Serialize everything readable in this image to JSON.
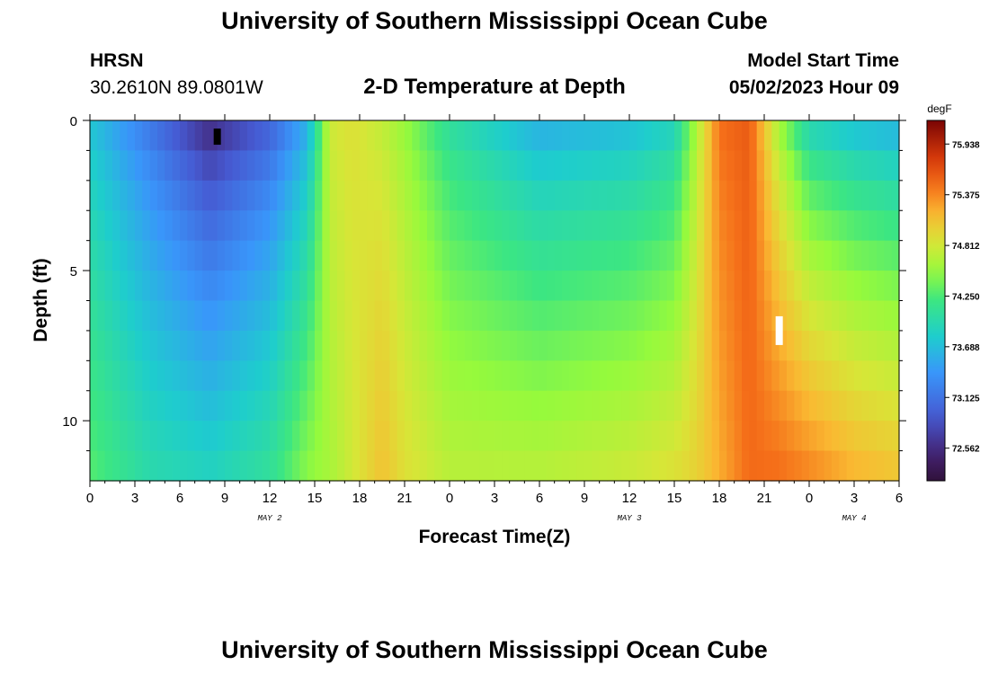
{
  "header": {
    "title": "University of Southern Mississippi Ocean Cube",
    "station": "HRSN",
    "coords": "30.2610N  89.0801W",
    "chart_title": "2-D Temperature at Depth",
    "start_label": "Model Start Time",
    "start_value": "05/02/2023 Hour 09"
  },
  "footer": {
    "title": "University of Southern Mississippi Ocean Cube"
  },
  "chart_data": {
    "type": "heatmap",
    "xlabel": "Forecast Time(Z)",
    "ylabel": "Depth (ft)",
    "x_hours": [
      0,
      54
    ],
    "x_ticks": [
      {
        "h": 0,
        "label": "0"
      },
      {
        "h": 3,
        "label": "3"
      },
      {
        "h": 6,
        "label": "6"
      },
      {
        "h": 9,
        "label": "9"
      },
      {
        "h": 12,
        "label": "12"
      },
      {
        "h": 15,
        "label": "15"
      },
      {
        "h": 18,
        "label": "18"
      },
      {
        "h": 21,
        "label": "21"
      },
      {
        "h": 24,
        "label": "0"
      },
      {
        "h": 27,
        "label": "3"
      },
      {
        "h": 30,
        "label": "6"
      },
      {
        "h": 33,
        "label": "9"
      },
      {
        "h": 36,
        "label": "12"
      },
      {
        "h": 39,
        "label": "15"
      },
      {
        "h": 42,
        "label": "18"
      },
      {
        "h": 45,
        "label": "21"
      },
      {
        "h": 48,
        "label": "0"
      },
      {
        "h": 51,
        "label": "3"
      },
      {
        "h": 54,
        "label": "6"
      }
    ],
    "day_labels": [
      {
        "h": 12,
        "label": "MAY 2"
      },
      {
        "h": 36,
        "label": "MAY 3"
      },
      {
        "h": 51,
        "label": "MAY 4"
      }
    ],
    "ylim": [
      0,
      12
    ],
    "y_ticks": [
      {
        "v": 0,
        "label": "0"
      },
      {
        "v": 5,
        "label": "5"
      },
      {
        "v": 10,
        "label": "10"
      }
    ],
    "colorbar": {
      "unit": "degF",
      "min": 72.2,
      "max": 76.2,
      "ticks": [
        "75.938",
        "75.375",
        "74.812",
        "74.250",
        "73.688",
        "73.125",
        "72.562"
      ]
    },
    "depth_levels": [
      0,
      1,
      2,
      3,
      4,
      5,
      6,
      7,
      8,
      9,
      10,
      11,
      12
    ],
    "field_profiles": [
      {
        "h": 0,
        "surf": 73.7,
        "bot": 74.3
      },
      {
        "h": 4,
        "surf": 73.1,
        "bot": 74.0
      },
      {
        "h": 8,
        "surf": 72.45,
        "bot": 73.9
      },
      {
        "h": 12,
        "surf": 72.9,
        "bot": 74.1
      },
      {
        "h": 14.5,
        "surf": 73.5,
        "bot": 74.5
      },
      {
        "h": 16,
        "surf": 74.8,
        "bot": 74.6
      },
      {
        "h": 17.5,
        "surf": 74.9,
        "bot": 74.8
      },
      {
        "h": 19.5,
        "surf": 74.7,
        "bot": 75.1
      },
      {
        "h": 21,
        "surf": 74.5,
        "bot": 74.9
      },
      {
        "h": 24,
        "surf": 74.0,
        "bot": 74.7
      },
      {
        "h": 30,
        "surf": 73.5,
        "bot": 74.7
      },
      {
        "h": 36,
        "surf": 73.6,
        "bot": 74.8
      },
      {
        "h": 39,
        "surf": 73.8,
        "bot": 74.9
      },
      {
        "h": 40.5,
        "surf": 74.6,
        "bot": 75.0
      },
      {
        "h": 42,
        "surf": 75.5,
        "bot": 75.2
      },
      {
        "h": 44,
        "surf": 75.6,
        "bot": 75.5
      },
      {
        "h": 46,
        "surf": 74.5,
        "bot": 75.5
      },
      {
        "h": 48,
        "surf": 73.8,
        "bot": 75.4
      },
      {
        "h": 51,
        "surf": 73.6,
        "bot": 75.2
      },
      {
        "h": 54,
        "surf": 73.5,
        "bot": 75.1
      }
    ],
    "min_marker": {
      "h": 8.5,
      "depth": 0.3
    },
    "max_marker": {
      "h": 46,
      "depth": 7
    }
  }
}
